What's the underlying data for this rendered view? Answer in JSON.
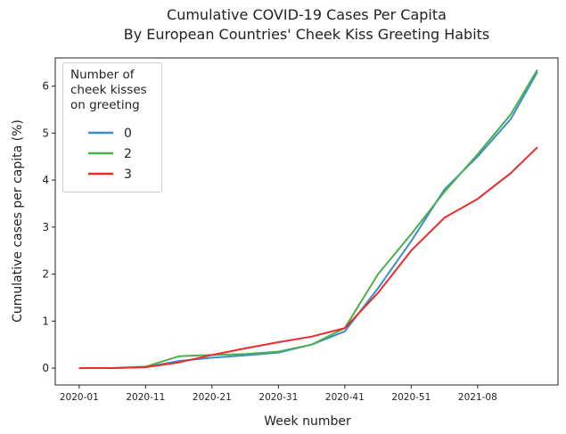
{
  "chart_data": {
    "type": "line",
    "title": "Cumulative COVID-19 Cases Per Capita\nBy European Countries' Cheek Kiss Greeting Habits",
    "x_label": "Week number",
    "y_label": "Cumulative cases per capita (%)",
    "legend_title": "Number of\ncheek kisses\non greeting",
    "x": [
      0,
      5,
      10,
      15,
      20,
      25,
      30,
      35,
      40,
      45,
      50,
      55,
      60,
      65,
      69
    ],
    "series": [
      {
        "name": "0",
        "color": "#3a8dd0",
        "values": [
          0,
          0,
          0.02,
          0.15,
          0.22,
          0.27,
          0.33,
          0.5,
          0.78,
          1.7,
          2.7,
          3.8,
          4.5,
          5.3,
          6.3
        ]
      },
      {
        "name": "2",
        "color": "#4cae4c",
        "values": [
          0,
          0,
          0.03,
          0.25,
          0.28,
          0.3,
          0.35,
          0.5,
          0.85,
          2.0,
          2.85,
          3.75,
          4.55,
          5.4,
          6.35
        ]
      },
      {
        "name": "3",
        "color": "#ec2a2a",
        "values": [
          0,
          0,
          0.02,
          0.12,
          0.28,
          0.42,
          0.55,
          0.67,
          0.85,
          1.6,
          2.5,
          3.2,
          3.6,
          4.15,
          4.7
        ]
      }
    ],
    "xlim": [
      -3.6,
      72.1
    ],
    "xticks": [
      {
        "value": 0,
        "label": "2020-01"
      },
      {
        "value": 10,
        "label": "2020-11"
      },
      {
        "value": 20,
        "label": "2020-21"
      },
      {
        "value": 30,
        "label": "2020-31"
      },
      {
        "value": 40,
        "label": "2020-41"
      },
      {
        "value": 50,
        "label": "2020-51"
      },
      {
        "value": 60,
        "label": "2021-08"
      }
    ],
    "ylim": [
      -0.36,
      6.6
    ],
    "yticks": [
      0,
      1,
      2,
      3,
      4,
      5,
      6
    ],
    "grid": false,
    "legend": "upper left"
  }
}
